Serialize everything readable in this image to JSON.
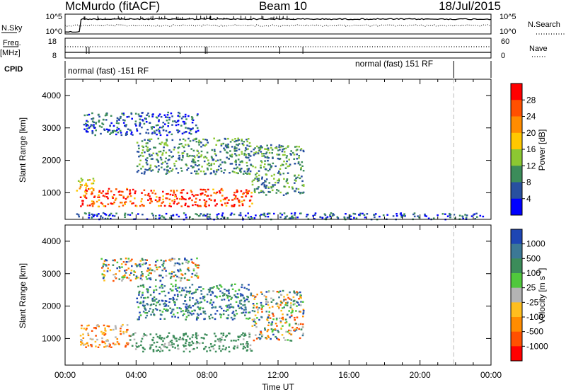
{
  "header": {
    "station": "McMurdo (fitACF)",
    "beam": "Beam 10",
    "date": "18/Jul/2015"
  },
  "chart_data": [
    {
      "type": "line",
      "panel": "noise",
      "left_label": "N.Sky",
      "right_label": "N.Search",
      "left_ticks": [
        "10^5",
        "10^0"
      ],
      "right_ticks": [
        "10^5",
        "10^0"
      ],
      "series": [
        {
          "name": "N.Sky",
          "style": "solid"
        },
        {
          "name": "N.Search",
          "style": "dotted"
        }
      ]
    },
    {
      "type": "line",
      "panel": "frequency",
      "left_label_line1": "Freq.",
      "left_label_line2": "[MHz]",
      "right_label": "Nave",
      "left_ticks": [
        "18",
        "8"
      ],
      "right_ticks": [
        "60",
        "0"
      ],
      "series": [
        {
          "name": "Freq.",
          "style": "solid"
        },
        {
          "name": "Nave",
          "style": "dotted"
        }
      ]
    },
    {
      "type": "table",
      "panel": "cpid",
      "label": "CPID",
      "segments": [
        {
          "text": "normal (fast) -151 RF",
          "start_hour": 0
        },
        {
          "text": "normal (fast) 151 RF",
          "start_hour": 21.9
        }
      ]
    },
    {
      "type": "heatmap",
      "panel": "power",
      "ylabel": "Slant Range [km]",
      "colorbar_label": "Power [dB]",
      "colorbar_ticks": [
        "28",
        "24",
        "20",
        "16",
        "12",
        "8",
        "4"
      ],
      "colors": [
        "#ff0000",
        "#ff5000",
        "#ff8c00",
        "#ffc800",
        "#8cc832",
        "#3c8c5a",
        "#2850a0",
        "#0000ff"
      ],
      "ylim": [
        180,
        4500
      ],
      "yticks": [
        "1000",
        "2000",
        "3000",
        "4000"
      ],
      "xlim": [
        0,
        24
      ],
      "scatter_regions": [
        {
          "t_start": 0.8,
          "t_end": 10.5,
          "r_low": 600,
          "r_high": 1150,
          "level": "high"
        },
        {
          "t_start": 0.6,
          "t_end": 1.6,
          "r_low": 1050,
          "r_high": 1500,
          "level": "mid"
        },
        {
          "t_start": 4.0,
          "t_end": 10.5,
          "r_low": 1600,
          "r_high": 2700,
          "level": "low"
        },
        {
          "t_start": 10.5,
          "t_end": 13.4,
          "r_low": 950,
          "r_high": 2500,
          "level": "low"
        },
        {
          "t_start": 1.0,
          "t_end": 7.5,
          "r_low": 2800,
          "r_high": 3500,
          "level": "vlow"
        },
        {
          "t_start": 0.5,
          "t_end": 24.0,
          "r_low": 200,
          "r_high": 400,
          "level": "vlow"
        }
      ]
    },
    {
      "type": "heatmap",
      "panel": "velocity",
      "ylabel": "Slant Range [km]",
      "colorbar_label": "Velocity [m s^-1]",
      "colorbar_ticks": [
        "1000",
        "500",
        "100",
        "25",
        "-25",
        "-100",
        "-500",
        "-1000"
      ],
      "colors": [
        "#1e46b4",
        "#3c7896",
        "#3c8c5a",
        "#50c83c",
        "#b4b4b4",
        "#ffbe1e",
        "#ff8c00",
        "#ff5000",
        "#ff0000"
      ],
      "ylim": [
        180,
        4500
      ],
      "yticks": [
        "1000",
        "2000",
        "3000",
        "4000"
      ],
      "xlim": [
        0,
        24
      ],
      "xticks": [
        "00:00",
        "04:00",
        "08:00",
        "12:00",
        "16:00",
        "20:00",
        "00:00"
      ],
      "xlabel": "Time UT",
      "scatter_regions": [
        {
          "t_start": 3.6,
          "t_end": 10.5,
          "r_low": 620,
          "r_high": 1200,
          "level": "zero"
        },
        {
          "t_start": 0.8,
          "t_end": 3.6,
          "r_low": 750,
          "r_high": 1450,
          "level": "neg"
        },
        {
          "t_start": 4.0,
          "t_end": 10.5,
          "r_low": 1600,
          "r_high": 2700,
          "level": "pos"
        },
        {
          "t_start": 10.5,
          "t_end": 13.4,
          "r_low": 950,
          "r_high": 2500,
          "level": "mixed"
        },
        {
          "t_start": 2.0,
          "t_end": 7.5,
          "r_low": 2800,
          "r_high": 3500,
          "level": "mixed"
        }
      ]
    }
  ]
}
